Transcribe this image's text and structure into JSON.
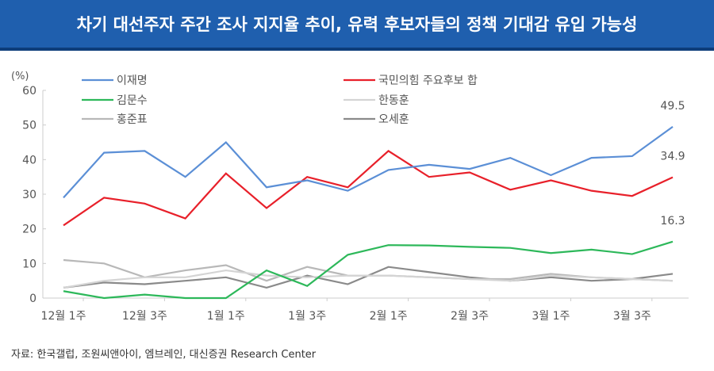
{
  "title": "차기 대선주자 주간 조사 지지율 추이, 유력 후보자들의 정책 기대감 유입 가능성",
  "source": "자료: 한국갤럽, 조원씨앤아이, 엠브레인, 대신증권 Research Center",
  "chart_data": {
    "type": "line",
    "ylabel": "(%)",
    "ylim": [
      0,
      60
    ],
    "yticks": [
      0,
      10,
      20,
      30,
      40,
      50,
      60
    ],
    "xtick_labels": [
      "12월 1주",
      "12월 3주",
      "1월 1주",
      "1월 3주",
      "2월 1주",
      "2월 3주",
      "3월 1주",
      "3월 3주"
    ],
    "legend": "top",
    "series": [
      {
        "name": "이재명",
        "color": "#5b8fd6",
        "values": [
          29,
          42,
          42.5,
          35,
          45,
          32,
          34,
          31,
          37,
          38.5,
          37.3,
          40.5,
          35.5,
          40.5,
          41,
          49.5
        ],
        "end_label": "49.5"
      },
      {
        "name": "국민의힘 주요후보 합",
        "color": "#e8202a",
        "values": [
          21,
          29,
          27.3,
          23,
          36,
          26,
          35,
          32,
          42.5,
          35,
          36.3,
          31.3,
          34,
          31,
          29.5,
          34.9
        ],
        "end_label": "34.9"
      },
      {
        "name": "김문수",
        "color": "#2db85a",
        "values": [
          2,
          0,
          1,
          0,
          0,
          8,
          3.5,
          12.5,
          15.3,
          15.2,
          14.8,
          14.5,
          13,
          14,
          12.7,
          16.3
        ],
        "end_label": "16.3"
      },
      {
        "name": "한동훈",
        "color": "#d4d4d4",
        "values": [
          3,
          5,
          6,
          6,
          8,
          6.5,
          6,
          6.5,
          6.5,
          6,
          5.5,
          5,
          6.5,
          6,
          5.5,
          5
        ]
      },
      {
        "name": "홍준표",
        "color": "#b8b8b8",
        "values": [
          11,
          10,
          6,
          8,
          9.5,
          5,
          9,
          6.5,
          6.5,
          6,
          5.5,
          5.5,
          7,
          6,
          5.5,
          5
        ]
      },
      {
        "name": "오세훈",
        "color": "#8a8a8a",
        "values": [
          3,
          4.5,
          4,
          5,
          6,
          3,
          6.5,
          4,
          9,
          7.5,
          6,
          5,
          6,
          5,
          5.5,
          7
        ]
      }
    ]
  }
}
